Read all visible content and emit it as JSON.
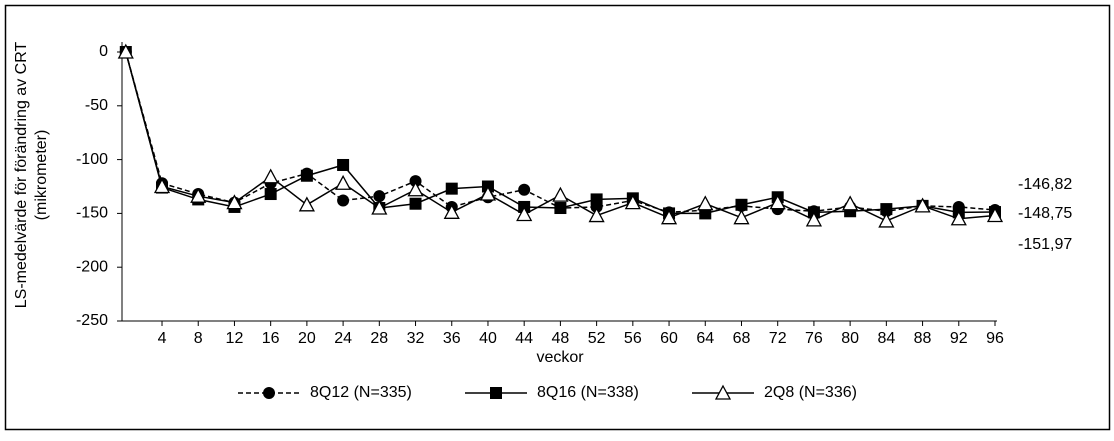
{
  "chart_data": {
    "type": "line",
    "y_label_lines": [
      "LS-medelvärde för förändring av CRT",
      "(mikrometer)"
    ],
    "x_label": "veckor",
    "x": [
      0,
      4,
      8,
      12,
      16,
      20,
      24,
      28,
      32,
      36,
      40,
      44,
      48,
      52,
      56,
      60,
      64,
      68,
      72,
      76,
      80,
      84,
      88,
      92,
      96
    ],
    "xlim": [
      0,
      96
    ],
    "xticks": [
      4,
      8,
      12,
      16,
      20,
      24,
      28,
      32,
      36,
      40,
      44,
      48,
      52,
      56,
      60,
      64,
      68,
      72,
      76,
      80,
      84,
      88,
      92,
      96
    ],
    "ylim": [
      -250,
      0
    ],
    "yticks": [
      0,
      -50,
      -100,
      -150,
      -200,
      -250
    ],
    "series": [
      {
        "name": "8Q12 (N=335)",
        "color": "#000000",
        "line_style": "dashed",
        "marker": "circle",
        "values": [
          0,
          -122,
          -132,
          -140,
          -122,
          -113,
          -138,
          -134,
          -120,
          -144,
          -135,
          -128,
          -145,
          -144,
          -138,
          -149,
          -147,
          -143,
          -146,
          -148,
          -144,
          -148,
          -143,
          -144,
          -146.82
        ]
      },
      {
        "name": "8Q16 (N=338)",
        "color": "#000000",
        "line_style": "solid",
        "marker": "square",
        "values": [
          0,
          -126,
          -137,
          -144,
          -132,
          -115,
          -105,
          -145,
          -141,
          -127,
          -125,
          -144,
          -145,
          -137,
          -136,
          -150,
          -150,
          -142,
          -135,
          -149,
          -148,
          -146,
          -143,
          -149,
          -148.75
        ]
      },
      {
        "name": "2Q8 (N=336)",
        "color": "#000000",
        "line_style": "solid",
        "marker": "triangle",
        "values": [
          0,
          -125,
          -134,
          -140,
          -116,
          -142,
          -122,
          -145,
          -128,
          -149,
          -132,
          -151,
          -133,
          -152,
          -140,
          -154,
          -141,
          -154,
          -140,
          -156,
          -141,
          -157,
          -143,
          -155,
          -151.97
        ]
      }
    ],
    "annotations": [
      "-146,82",
      "-148,75",
      "-151,97"
    ]
  }
}
